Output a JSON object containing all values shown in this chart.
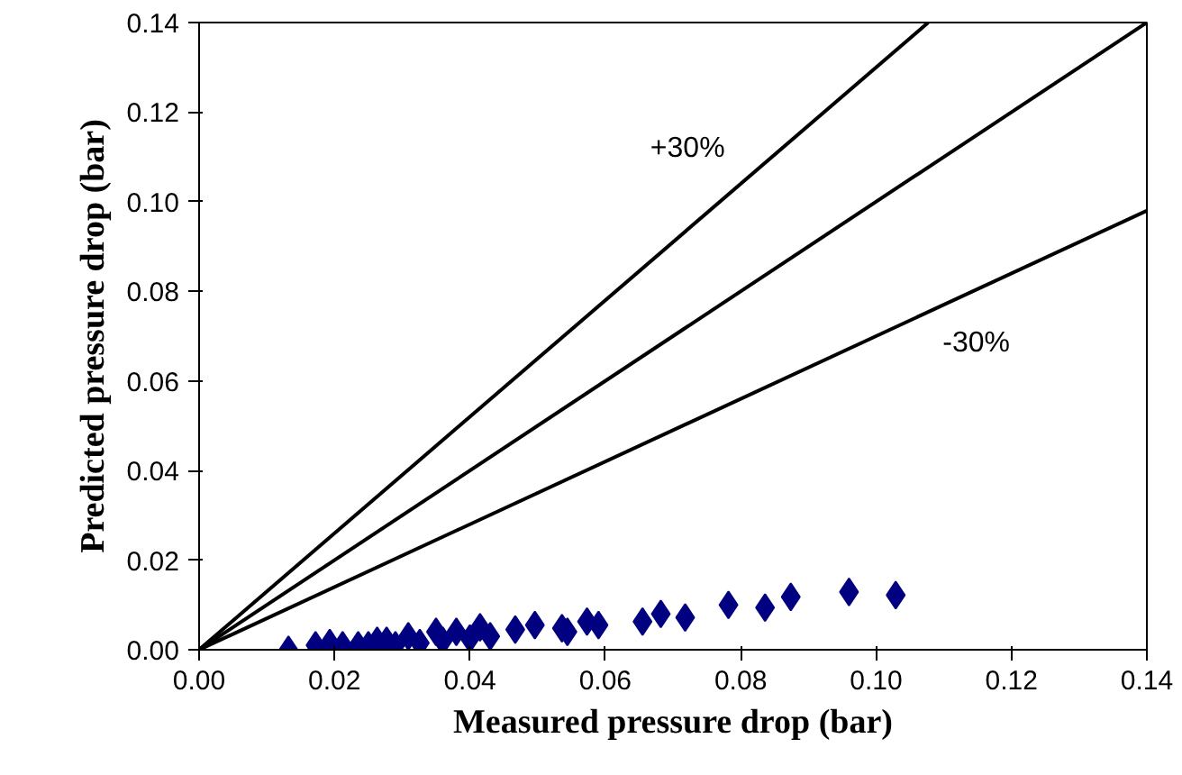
{
  "chart_data": {
    "type": "scatter",
    "xlabel": "Measured pressure drop (bar)",
    "ylabel": "Predicted pressure drop (bar)",
    "xlim": [
      0,
      0.14
    ],
    "ylim": [
      0,
      0.14
    ],
    "xticks": [
      {
        "value": 0,
        "label": "0.00"
      },
      {
        "value": 0.02,
        "label": "0.02"
      },
      {
        "value": 0.04,
        "label": "0.04"
      },
      {
        "value": 0.06,
        "label": "0.06"
      },
      {
        "value": 0.08,
        "label": "0.08"
      },
      {
        "value": 0.1,
        "label": "0.10"
      },
      {
        "value": 0.12,
        "label": "0.12"
      },
      {
        "value": 0.14,
        "label": "0.14"
      }
    ],
    "yticks": [
      {
        "value": 0,
        "label": "0.00"
      },
      {
        "value": 0.02,
        "label": "0.02"
      },
      {
        "value": 0.04,
        "label": "0.04"
      },
      {
        "value": 0.06,
        "label": "0.06"
      },
      {
        "value": 0.08,
        "label": "0.08"
      },
      {
        "value": 0.1,
        "label": "0.10"
      },
      {
        "value": 0.12,
        "label": "0.12"
      },
      {
        "value": 0.14,
        "label": "0.14"
      }
    ],
    "grid": false,
    "legend": false,
    "marker": "diamond",
    "series": [
      {
        "color": "#000080",
        "x": [
          0.0132,
          0.0172,
          0.0193,
          0.0212,
          0.0235,
          0.025,
          0.0263,
          0.0277,
          0.029,
          0.0309,
          0.0326,
          0.035,
          0.036,
          0.038,
          0.04,
          0.0415,
          0.043,
          0.0467,
          0.0496,
          0.0536,
          0.0544,
          0.0573,
          0.059,
          0.0655,
          0.0682,
          0.0718,
          0.0782,
          0.0836,
          0.0874,
          0.096,
          0.1029
        ],
        "values": [
          0.0,
          0.001,
          0.0015,
          0.001,
          0.001,
          0.001,
          0.002,
          0.002,
          0.001,
          0.003,
          0.0015,
          0.004,
          0.002,
          0.004,
          0.0025,
          0.005,
          0.003,
          0.0045,
          0.0055,
          0.0048,
          0.004,
          0.0063,
          0.0055,
          0.0063,
          0.008,
          0.0072,
          0.01,
          0.0094,
          0.0118,
          0.0129,
          0.0122
        ]
      },
      {
        "type": "line",
        "name": "+30%",
        "color": "#000000",
        "marker": "none",
        "x": [
          0,
          0.1077
        ],
        "values": [
          0,
          0.14
        ]
      },
      {
        "type": "line",
        "color": "#000000",
        "marker": "none",
        "x": [
          0,
          0.14
        ],
        "values": [
          0,
          0.14
        ]
      },
      {
        "type": "line",
        "name": "-30%",
        "color": "#000000",
        "marker": "none",
        "x": [
          0,
          0.14
        ],
        "values": [
          0,
          0.098
        ]
      }
    ]
  }
}
